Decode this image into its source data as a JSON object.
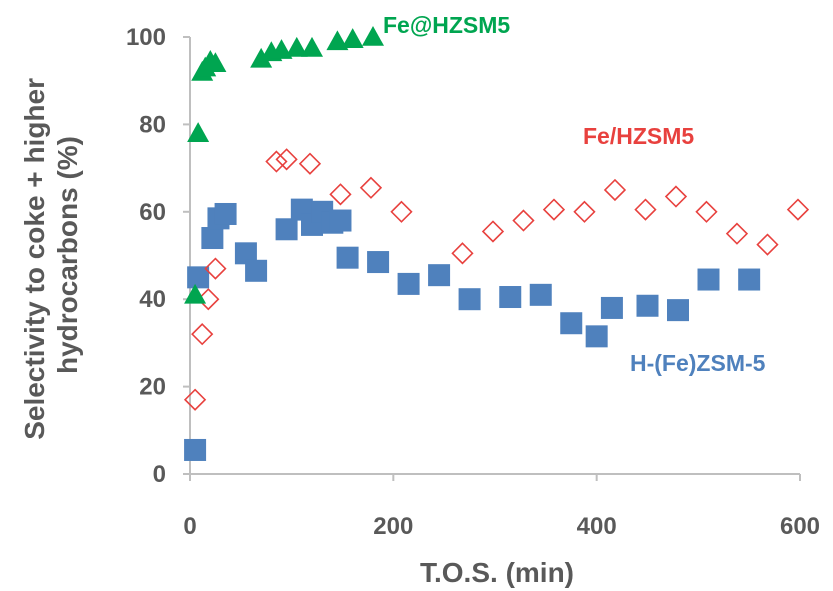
{
  "chart_data": {
    "type": "scatter",
    "xlabel": "T.O.S. (min)",
    "ylabel_lines": [
      "Selectivity to coke + higher",
      "hydrocarbons (%)"
    ],
    "xlim": [
      0,
      600
    ],
    "ylim": [
      0,
      100
    ],
    "x_ticks": [
      "0",
      "200",
      "400",
      "600"
    ],
    "y_ticks": [
      "0",
      "20",
      "40",
      "60",
      "80",
      "100"
    ],
    "grid": false,
    "series": [
      {
        "name": "Fe@HZSM5",
        "marker": "triangle",
        "color": "#00A550",
        "points": [
          [
            5,
            41
          ],
          [
            8,
            78
          ],
          [
            12,
            92
          ],
          [
            15,
            93
          ],
          [
            20,
            94.5
          ],
          [
            25,
            94
          ],
          [
            70,
            95
          ],
          [
            80,
            96.5
          ],
          [
            90,
            97
          ],
          [
            105,
            97.5
          ],
          [
            120,
            97.5
          ],
          [
            145,
            99
          ],
          [
            160,
            99.5
          ],
          [
            180,
            100
          ]
        ]
      },
      {
        "name": "Fe/HZSM5",
        "marker": "open-diamond",
        "color": "#E8413E",
        "points": [
          [
            5,
            17
          ],
          [
            12,
            32
          ],
          [
            18,
            40
          ],
          [
            25,
            47
          ],
          [
            85,
            71.5
          ],
          [
            95,
            72
          ],
          [
            118,
            71
          ],
          [
            148,
            64
          ],
          [
            178,
            65.5
          ],
          [
            208,
            60
          ],
          [
            268,
            50.5
          ],
          [
            298,
            55.5
          ],
          [
            328,
            58
          ],
          [
            358,
            60.5
          ],
          [
            388,
            60
          ],
          [
            418,
            65
          ],
          [
            448,
            60.5
          ],
          [
            478,
            63.5
          ],
          [
            508,
            60
          ],
          [
            538,
            55
          ],
          [
            568,
            52.5
          ],
          [
            598,
            60.5
          ]
        ]
      },
      {
        "name": "H-(Fe)ZSM-5",
        "marker": "square",
        "color": "#4F81BD",
        "points": [
          [
            5,
            5.5
          ],
          [
            8,
            45
          ],
          [
            22,
            54
          ],
          [
            28,
            58.5
          ],
          [
            35,
            59.5
          ],
          [
            55,
            50.5
          ],
          [
            65,
            46.5
          ],
          [
            95,
            56
          ],
          [
            110,
            60.5
          ],
          [
            120,
            57
          ],
          [
            130,
            60
          ],
          [
            140,
            57.5
          ],
          [
            148,
            58
          ],
          [
            155,
            49.5
          ],
          [
            185,
            48.5
          ],
          [
            215,
            43.5
          ],
          [
            245,
            45.5
          ],
          [
            275,
            40
          ],
          [
            315,
            40.5
          ],
          [
            345,
            41
          ],
          [
            375,
            34.5
          ],
          [
            400,
            31.5
          ],
          [
            415,
            38
          ],
          [
            450,
            38.5
          ],
          [
            480,
            37.5
          ],
          [
            510,
            44.5
          ],
          [
            550,
            44.5
          ]
        ]
      }
    ]
  }
}
